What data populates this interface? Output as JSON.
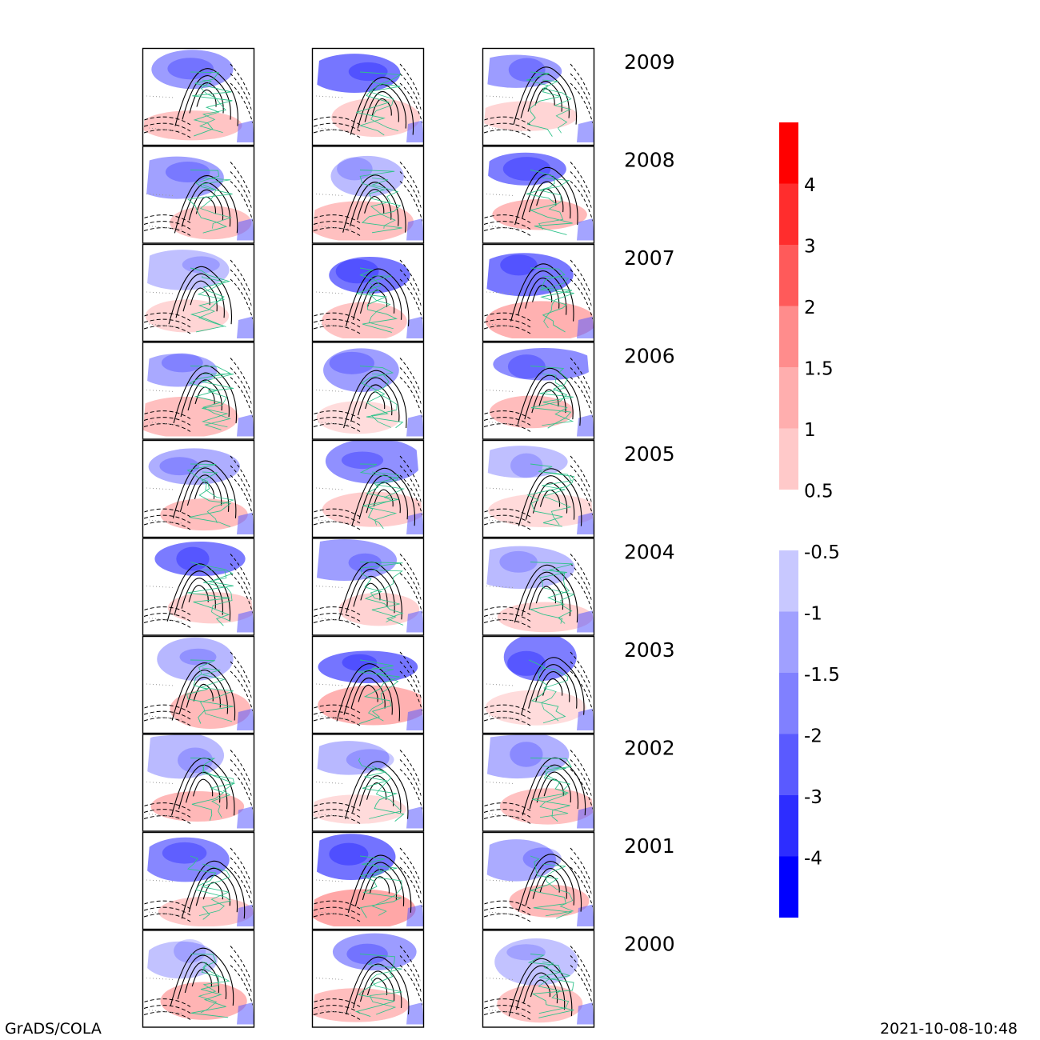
{
  "years": [
    "2009",
    "2008",
    "2007",
    "2006",
    "2005",
    "2004",
    "2003",
    "2002",
    "2001",
    "2000"
  ],
  "columns": 3,
  "colorbar_positive": {
    "labels": [
      "4",
      "3",
      "2",
      "1.5",
      "1",
      "0.5"
    ],
    "colors": [
      "#ff0000",
      "#ff2d2d",
      "#ff5a5a",
      "#ff8c8c",
      "#ffaeae",
      "#ffc9c9"
    ]
  },
  "colorbar_negative": {
    "labels": [
      "-0.5",
      "-1",
      "-1.5",
      "-2",
      "-3",
      "-4"
    ],
    "colors": [
      "#c8c8ff",
      "#a0a0ff",
      "#8080ff",
      "#5a5aff",
      "#2d2dff",
      "#0000ff"
    ]
  },
  "footer": {
    "left": "GrADS/COLA",
    "right": "2021-10-08-10:48"
  },
  "colors": {
    "pos_fill": "#ff8c8c",
    "neg_fill": "#5a5aff",
    "contour_solid": "#000000",
    "contour_coast": "#2fc28a",
    "frame": "#000000"
  }
}
